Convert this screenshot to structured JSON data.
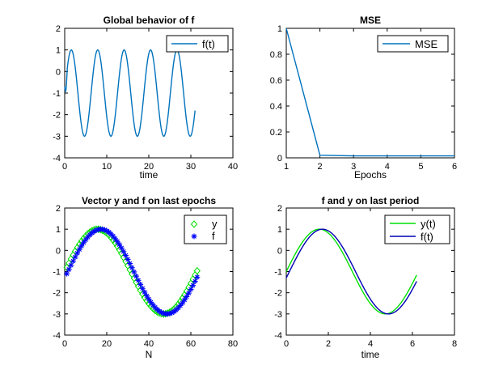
{
  "chart_data": [
    {
      "type": "line",
      "title": "Global behavior of f",
      "xlabel": "time",
      "ylabel": "",
      "xlim": [
        0,
        40
      ],
      "ylim": [
        -4,
        2
      ],
      "xticks": [
        "0",
        "10",
        "20",
        "30",
        "40"
      ],
      "yticks": [
        "2",
        "1",
        "0",
        "-1",
        "-2",
        "-3",
        "-4"
      ],
      "legend_position": "top-right",
      "series": [
        {
          "name": "f(t)",
          "color": "#0072BD",
          "style": "line",
          "function": "2*sin(t) - 1",
          "t_range": [
            0,
            31
          ],
          "notes": "initial transient near t=0 starting around y=-0.7"
        }
      ]
    },
    {
      "type": "line",
      "title": "MSE",
      "xlabel": "Epochs",
      "ylabel": "",
      "xlim": [
        1,
        6
      ],
      "ylim": [
        0,
        1
      ],
      "xticks": [
        "1",
        "2",
        "3",
        "4",
        "5",
        "6"
      ],
      "yticks": [
        "1",
        "0.8",
        "0.6",
        "0.4",
        "0.2",
        "0"
      ],
      "legend_position": "top-right",
      "series": [
        {
          "name": "MSE",
          "color": "#0072BD",
          "style": "line",
          "x": [
            1,
            2,
            3,
            4,
            5,
            6
          ],
          "y": [
            1.0,
            0.02,
            0.015,
            0.015,
            0.015,
            0.015
          ]
        }
      ]
    },
    {
      "type": "scatter",
      "title": "Vector y and f on last epochs",
      "xlabel": "N",
      "ylabel": "",
      "xlim": [
        0,
        80
      ],
      "ylim": [
        -4,
        2
      ],
      "xticks": [
        "0",
        "20",
        "40",
        "60",
        "80"
      ],
      "yticks": [
        "2",
        "1",
        "0",
        "-1",
        "-2",
        "-3",
        "-4"
      ],
      "legend_position": "top-right",
      "series": [
        {
          "name": "y",
          "color": "#00E000",
          "marker": "diamond",
          "function": "2*sin(N*0.1) - 1",
          "n_range": [
            1,
            63
          ]
        },
        {
          "name": "f",
          "color": "#0000FF",
          "marker": "asterisk",
          "function": "2*sin(N*0.1 - 0.15) - 1",
          "n_range": [
            1,
            63
          ]
        }
      ]
    },
    {
      "type": "line",
      "title": "f and y on last period",
      "xlabel": "time",
      "ylabel": "",
      "xlim": [
        0,
        8
      ],
      "ylim": [
        -4,
        2
      ],
      "xticks": [
        "0",
        "2",
        "4",
        "6",
        "8"
      ],
      "yticks": [
        "2",
        "1",
        "0",
        "-1",
        "-2",
        "-3",
        "-4"
      ],
      "legend_position": "top-right",
      "series": [
        {
          "name": "y(t)",
          "color": "#00E000",
          "style": "line",
          "function": "2*sin(t) - 1",
          "t_range": [
            0,
            6.2
          ]
        },
        {
          "name": "f(t)",
          "color": "#0000B4",
          "style": "line",
          "function": "2*sin(t - 0.15) - 1",
          "t_range": [
            0,
            6.2
          ]
        }
      ]
    }
  ]
}
